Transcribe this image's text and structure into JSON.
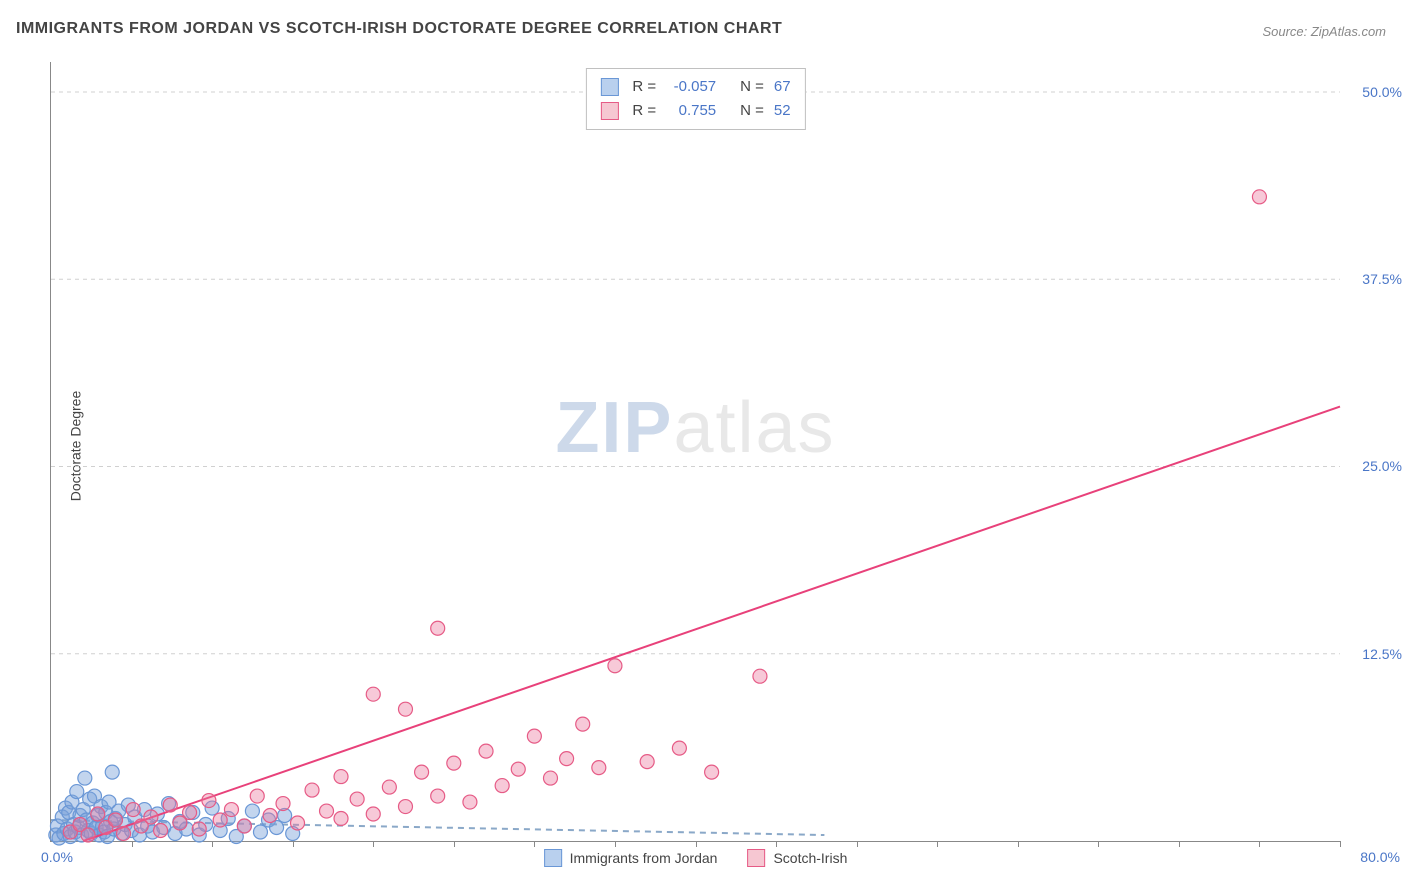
{
  "title": "IMMIGRANTS FROM JORDAN VS SCOTCH-IRISH DOCTORATE DEGREE CORRELATION CHART",
  "source_label": "Source: ZipAtlas.com",
  "y_axis_title": "Doctorate Degree",
  "watermark_zip": "ZIP",
  "watermark_atlas": "atlas",
  "chart": {
    "type": "scatter",
    "x_min": 0,
    "x_max": 80,
    "y_min": 0,
    "y_max": 52,
    "x_origin_label": "0.0%",
    "x_max_label": "80.0%",
    "y_ticks": [
      {
        "value": 12.5,
        "label": "12.5%"
      },
      {
        "value": 25.0,
        "label": "25.0%"
      },
      {
        "value": 37.5,
        "label": "37.5%"
      },
      {
        "value": 50.0,
        "label": "50.0%"
      }
    ],
    "x_ticks_minor": [
      5,
      10,
      15,
      20,
      25,
      30,
      35,
      40,
      45,
      50,
      55,
      60,
      65,
      70,
      75,
      80
    ],
    "grid_color": "#d0d0d0",
    "background": "#ffffff",
    "marker_radius": 7,
    "marker_stroke_width": 1.2,
    "line_width": 2,
    "dash_pattern": "6,5"
  },
  "legend": {
    "items": [
      {
        "label": "Immigrants from Jordan",
        "fill": "#b9d0ee",
        "stroke": "#6a97d6"
      },
      {
        "label": "Scotch-Irish",
        "fill": "#f6c7d2",
        "stroke": "#e65b86"
      }
    ]
  },
  "stats": [
    {
      "fill": "#b9d0ee",
      "stroke": "#6a97d6",
      "r": "-0.057",
      "n": "67"
    },
    {
      "fill": "#f6c7d2",
      "stroke": "#e65b86",
      "r": "0.755",
      "n": "52"
    }
  ],
  "series": [
    {
      "name": "Immigrants from Jordan",
      "fill": "rgba(122,162,218,0.45)",
      "stroke": "#6a97d6",
      "trend": {
        "x1": 0,
        "y1": 1.4,
        "x2": 48,
        "y2": 0.4,
        "color": "#8aa8c8",
        "dashed": true
      },
      "points": [
        [
          0.3,
          0.4
        ],
        [
          0.4,
          1.0
        ],
        [
          0.5,
          0.2
        ],
        [
          0.7,
          1.6
        ],
        [
          0.8,
          0.5
        ],
        [
          0.9,
          2.2
        ],
        [
          1.0,
          0.8
        ],
        [
          1.1,
          1.9
        ],
        [
          1.2,
          0.3
        ],
        [
          1.3,
          2.6
        ],
        [
          1.4,
          1.1
        ],
        [
          1.5,
          0.6
        ],
        [
          1.6,
          3.3
        ],
        [
          1.7,
          0.9
        ],
        [
          1.8,
          1.7
        ],
        [
          1.9,
          0.4
        ],
        [
          2.0,
          2.1
        ],
        [
          2.1,
          4.2
        ],
        [
          2.2,
          1.4
        ],
        [
          2.3,
          0.7
        ],
        [
          2.4,
          2.8
        ],
        [
          2.5,
          0.5
        ],
        [
          2.6,
          1.2
        ],
        [
          2.7,
          3.0
        ],
        [
          2.8,
          0.9
        ],
        [
          2.9,
          1.7
        ],
        [
          3.0,
          0.4
        ],
        [
          3.1,
          2.3
        ],
        [
          3.2,
          1.0
        ],
        [
          3.3,
          0.6
        ],
        [
          3.4,
          1.9
        ],
        [
          3.5,
          0.3
        ],
        [
          3.6,
          2.6
        ],
        [
          3.7,
          1.3
        ],
        [
          3.8,
          4.6
        ],
        [
          3.9,
          0.8
        ],
        [
          4.0,
          1.5
        ],
        [
          4.2,
          2.0
        ],
        [
          4.4,
          0.5
        ],
        [
          4.6,
          1.1
        ],
        [
          4.8,
          2.4
        ],
        [
          5.0,
          0.7
        ],
        [
          5.2,
          1.6
        ],
        [
          5.5,
          0.4
        ],
        [
          5.8,
          2.1
        ],
        [
          6.0,
          1.0
        ],
        [
          6.3,
          0.6
        ],
        [
          6.6,
          1.8
        ],
        [
          7.0,
          0.9
        ],
        [
          7.3,
          2.5
        ],
        [
          7.7,
          0.5
        ],
        [
          8.0,
          1.3
        ],
        [
          8.4,
          0.8
        ],
        [
          8.8,
          1.9
        ],
        [
          9.2,
          0.4
        ],
        [
          9.6,
          1.1
        ],
        [
          10.0,
          2.2
        ],
        [
          10.5,
          0.7
        ],
        [
          11.0,
          1.5
        ],
        [
          11.5,
          0.3
        ],
        [
          12.0,
          1.0
        ],
        [
          12.5,
          2.0
        ],
        [
          13.0,
          0.6
        ],
        [
          13.5,
          1.4
        ],
        [
          14.0,
          0.9
        ],
        [
          14.5,
          1.7
        ],
        [
          15.0,
          0.5
        ]
      ]
    },
    {
      "name": "Scotch-Irish",
      "fill": "rgba(236,120,158,0.40)",
      "stroke": "#e65b86",
      "trend": {
        "x1": 2,
        "y1": 0,
        "x2": 80,
        "y2": 29,
        "color": "#e8417a",
        "dashed": false
      },
      "points": [
        [
          1.2,
          0.6
        ],
        [
          1.8,
          1.1
        ],
        [
          2.3,
          0.4
        ],
        [
          2.9,
          1.8
        ],
        [
          3.4,
          0.9
        ],
        [
          4.0,
          1.4
        ],
        [
          4.5,
          0.5
        ],
        [
          5.1,
          2.1
        ],
        [
          5.6,
          1.0
        ],
        [
          6.2,
          1.6
        ],
        [
          6.8,
          0.7
        ],
        [
          7.4,
          2.4
        ],
        [
          8.0,
          1.2
        ],
        [
          8.6,
          1.9
        ],
        [
          9.2,
          0.8
        ],
        [
          9.8,
          2.7
        ],
        [
          10.5,
          1.4
        ],
        [
          11.2,
          2.1
        ],
        [
          12.0,
          1.0
        ],
        [
          12.8,
          3.0
        ],
        [
          13.6,
          1.7
        ],
        [
          14.4,
          2.5
        ],
        [
          15.3,
          1.2
        ],
        [
          16.2,
          3.4
        ],
        [
          17.1,
          2.0
        ],
        [
          18.0,
          4.3
        ],
        [
          18.0,
          1.5
        ],
        [
          19.0,
          2.8
        ],
        [
          20.0,
          9.8
        ],
        [
          20.0,
          1.8
        ],
        [
          21.0,
          3.6
        ],
        [
          22.0,
          2.3
        ],
        [
          22.0,
          8.8
        ],
        [
          23.0,
          4.6
        ],
        [
          24.0,
          14.2
        ],
        [
          24.0,
          3.0
        ],
        [
          25.0,
          5.2
        ],
        [
          26.0,
          2.6
        ],
        [
          27.0,
          6.0
        ],
        [
          28.0,
          3.7
        ],
        [
          29.0,
          4.8
        ],
        [
          30.0,
          7.0
        ],
        [
          31.0,
          4.2
        ],
        [
          32.0,
          5.5
        ],
        [
          33.0,
          7.8
        ],
        [
          34.0,
          4.9
        ],
        [
          35.0,
          11.7
        ],
        [
          37.0,
          5.3
        ],
        [
          39.0,
          6.2
        ],
        [
          41.0,
          4.6
        ],
        [
          44.0,
          11.0
        ],
        [
          75.0,
          43.0
        ]
      ]
    }
  ]
}
